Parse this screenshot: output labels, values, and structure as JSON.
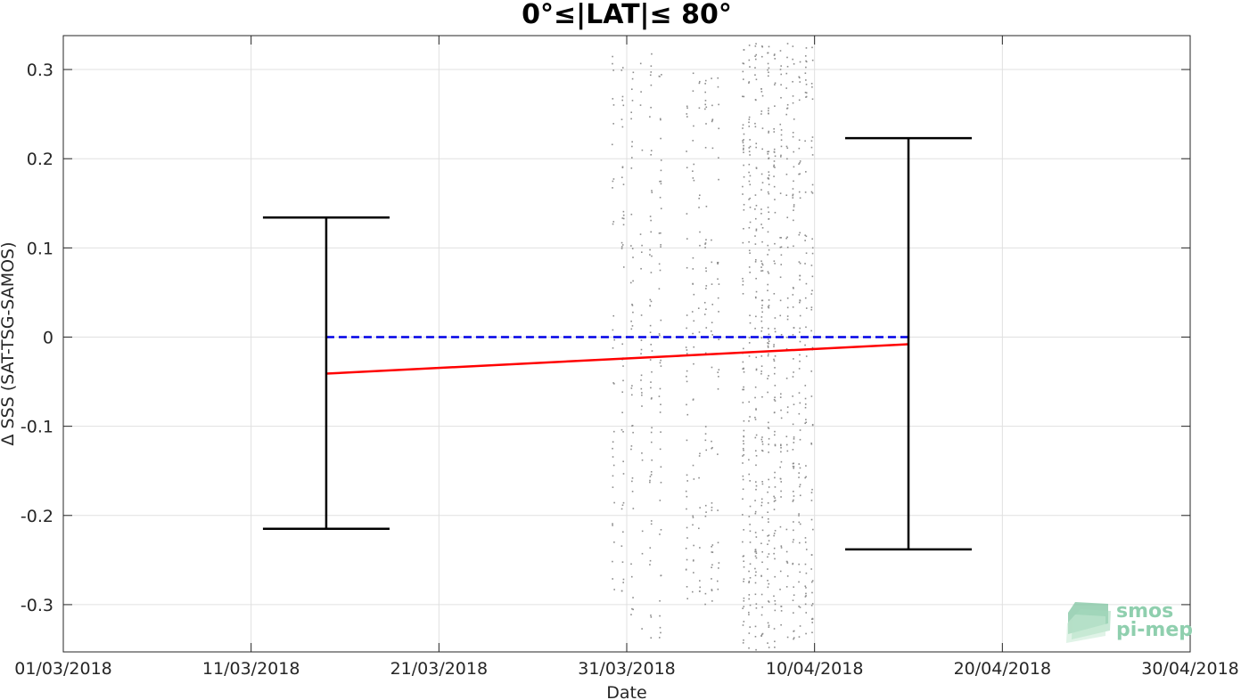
{
  "chart_data": {
    "type": "scatter",
    "title": "0°≤|LAT|≤ 80°",
    "xlabel": "Date",
    "ylabel": "Δ SSS (SAT-TSG-SAMOS)",
    "x_range": [
      "2018-03-01",
      "2018-04-30"
    ],
    "ylim": [
      -0.353,
      0.338
    ],
    "grid": true,
    "x_ticks": [
      "01/03/2018",
      "11/03/2018",
      "21/03/2018",
      "31/03/2018",
      "10/04/2018",
      "20/04/2018",
      "30/04/2018"
    ],
    "y_ticks": [
      "-0.3",
      "-0.2",
      "-0.1",
      "0",
      "0.1",
      "0.2",
      "0.3"
    ],
    "colors": {
      "points": "#8c8c8c",
      "trend": "#ff0000",
      "zero": "#0000e6",
      "errorbar": "#000000",
      "grid": "#e0e0e0"
    },
    "scatter_clusters": [
      {
        "day_start": "2018-03-30",
        "day_end": "2018-04-02",
        "n": 230,
        "y_min": -0.34,
        "y_max": 0.32
      },
      {
        "day_start": "2018-04-03",
        "day_end": "2018-04-05",
        "n": 170,
        "y_min": -0.3,
        "y_max": 0.31
      },
      {
        "day_start": "2018-04-06",
        "day_end": "2018-04-08",
        "n": 420,
        "y_min": -0.35,
        "y_max": 0.33
      },
      {
        "day_start": "2018-04-08",
        "day_end": "2018-04-10",
        "n": 300,
        "y_min": -0.34,
        "y_max": 0.33
      }
    ],
    "trend_line": {
      "x": [
        "2018-03-15",
        "2018-04-15"
      ],
      "y": [
        -0.041,
        -0.008
      ]
    },
    "zero_line": {
      "x": [
        "2018-03-15",
        "2018-04-15"
      ],
      "y": [
        0,
        0
      ]
    },
    "error_bars": [
      {
        "x": "2018-03-15",
        "lower": -0.215,
        "upper": 0.134
      },
      {
        "x": "2018-04-15",
        "lower": -0.238,
        "upper": 0.223
      }
    ]
  },
  "logo": {
    "line1": "smos",
    "line2": "pi-mep"
  }
}
